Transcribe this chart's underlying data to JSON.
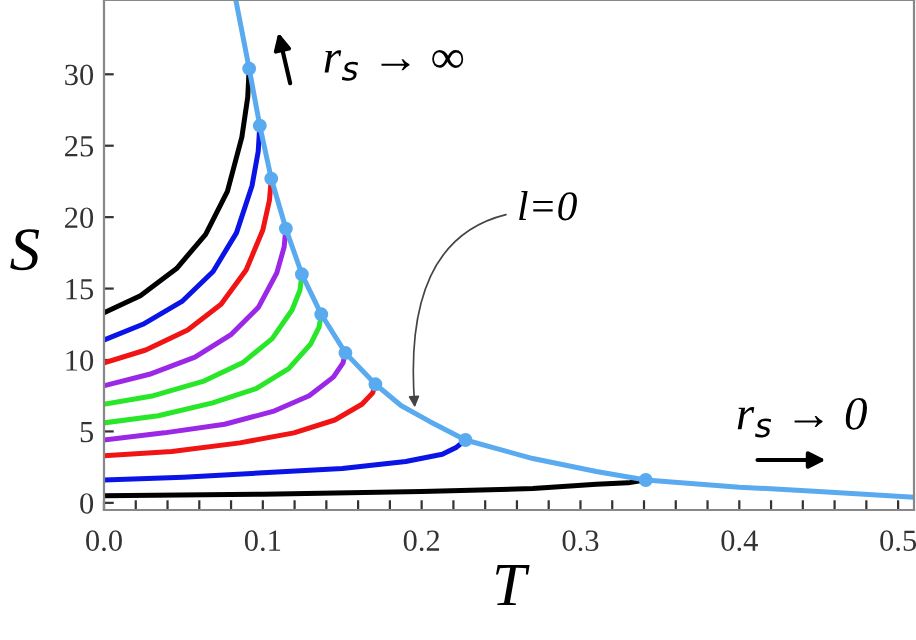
{
  "chart_data": {
    "type": "line",
    "xlabel": "T",
    "ylabel": "S",
    "xlim": [
      0,
      0.51
    ],
    "ylim": [
      -0.5,
      35.2
    ],
    "xticks": [
      {
        "value": 0,
        "label": "0.0"
      },
      {
        "value": 0.02,
        "label": null
      },
      {
        "value": 0.04,
        "label": null
      },
      {
        "value": 0.06,
        "label": null
      },
      {
        "value": 0.08,
        "label": null
      },
      {
        "value": 0.1,
        "label": "0.1"
      },
      {
        "value": 0.12,
        "label": null
      },
      {
        "value": 0.14,
        "label": null
      },
      {
        "value": 0.16,
        "label": null
      },
      {
        "value": 0.18,
        "label": null
      },
      {
        "value": 0.2,
        "label": "0.2"
      },
      {
        "value": 0.22,
        "label": null
      },
      {
        "value": 0.24,
        "label": null
      },
      {
        "value": 0.26,
        "label": null
      },
      {
        "value": 0.28,
        "label": null
      },
      {
        "value": 0.3,
        "label": "0.3"
      },
      {
        "value": 0.32,
        "label": null
      },
      {
        "value": 0.34,
        "label": null
      },
      {
        "value": 0.36,
        "label": null
      },
      {
        "value": 0.38,
        "label": null
      },
      {
        "value": 0.4,
        "label": "0.4"
      },
      {
        "value": 0.42,
        "label": null
      },
      {
        "value": 0.44,
        "label": null
      },
      {
        "value": 0.46,
        "label": null
      },
      {
        "value": 0.48,
        "label": null
      },
      {
        "value": 0.5,
        "label": "0.5"
      }
    ],
    "yticks": [
      0,
      5,
      10,
      15,
      20,
      25,
      30
    ],
    "grid": false,
    "legend": false,
    "series": [
      {
        "color": "#000000",
        "x": [
          0,
          0.0229,
          0.0457,
          0.064,
          0.0777,
          0.0868,
          0.0905,
          0.0914
        ],
        "values": [
          13.3,
          14.5,
          16.4,
          18.8,
          21.8,
          25.6,
          28.4,
          30.4
        ]
      },
      {
        "color": "#0a14e6",
        "x": [
          0,
          0.0245,
          0.0491,
          0.0687,
          0.0834,
          0.0932,
          0.0971,
          0.0981
        ],
        "values": [
          11.4,
          12.5,
          14.1,
          16.2,
          18.9,
          22.2,
          24.6,
          26.4
        ]
      },
      {
        "color": "#f01414",
        "x": [
          0,
          0.0263,
          0.0527,
          0.0737,
          0.0895,
          0.1,
          0.1042,
          0.1053
        ],
        "values": [
          9.8,
          10.7,
          12.1,
          13.9,
          16.3,
          19.1,
          21.2,
          22.7
        ]
      },
      {
        "color": "#9b28e6",
        "x": [
          0,
          0.0286,
          0.0573,
          0.0802,
          0.0973,
          0.1088,
          0.1134,
          0.1145
        ],
        "values": [
          8.2,
          9.0,
          10.2,
          11.8,
          13.7,
          16.1,
          17.9,
          19.2
        ]
      },
      {
        "color": "#28e628",
        "x": [
          0,
          0.0312,
          0.0623,
          0.0872,
          0.1059,
          0.1184,
          0.1234,
          0.1246
        ],
        "values": [
          6.9,
          7.5,
          8.5,
          9.8,
          11.5,
          13.5,
          14.9,
          16.0
        ]
      },
      {
        "color": "#28e628",
        "x": [
          0,
          0.0342,
          0.0684,
          0.0958,
          0.1163,
          0.13,
          0.1354,
          0.1368
        ],
        "values": [
          5.6,
          6.1,
          7.0,
          8.0,
          9.4,
          11.1,
          12.3,
          13.2
        ]
      },
      {
        "color": "#9b28e6",
        "x": [
          0,
          0.038,
          0.076,
          0.1064,
          0.1292,
          0.1444,
          0.1505,
          0.152
        ],
        "values": [
          4.4,
          4.9,
          5.5,
          6.4,
          7.5,
          8.8,
          9.8,
          10.5
        ]
      },
      {
        "color": "#f01414",
        "x": [
          0,
          0.0427,
          0.0855,
          0.1196,
          0.1453,
          0.1624,
          0.1692,
          0.1709
        ],
        "values": [
          3.3,
          3.6,
          4.2,
          4.9,
          5.8,
          6.9,
          7.7,
          8.3
        ]
      },
      {
        "color": "#0a14e6",
        "x": [
          0,
          0.05,
          0.1,
          0.15,
          0.19,
          0.213,
          0.222,
          0.2276
        ],
        "values": [
          1.6,
          1.8,
          2.1,
          2.4,
          2.9,
          3.4,
          3.9,
          4.4
        ]
      },
      {
        "color": "#000000",
        "x": [
          0,
          0.1,
          0.2,
          0.27,
          0.31,
          0.33,
          0.3411
        ],
        "values": [
          0.5,
          0.6,
          0.8,
          1.0,
          1.3,
          1.4,
          1.6
        ]
      },
      {
        "color": "#5aaaf0",
        "x": [
          0.083,
          0.0914,
          0.0981,
          0.1053,
          0.1145,
          0.1246,
          0.1368,
          0.152,
          0.1709,
          0.1872,
          0.205,
          0.2276,
          0.27,
          0.31,
          0.3411,
          0.4,
          0.45,
          0.51
        ],
        "values": [
          35.2,
          30.4,
          26.4,
          22.7,
          19.2,
          16.0,
          13.2,
          10.5,
          8.3,
          6.8,
          5.7,
          4.4,
          3.1,
          2.2,
          1.6,
          1.1,
          0.8,
          0.4
        ]
      },
      {
        "type": "scatter",
        "marker": "circle",
        "color": "#5aaaf0",
        "x": [
          0.0914,
          0.0981,
          0.1053,
          0.1145,
          0.1246,
          0.1368,
          0.152,
          0.1709,
          0.2276,
          0.3411
        ],
        "values": [
          30.4,
          26.4,
          22.7,
          19.2,
          16.0,
          13.2,
          10.5,
          8.3,
          4.4,
          1.6
        ]
      }
    ],
    "annotations": [
      {
        "text": "l=0",
        "x": 0.196,
        "y": 6.3
      },
      "r$_{s}$ → ∞",
      "r$_{s}$ → 0"
    ]
  }
}
